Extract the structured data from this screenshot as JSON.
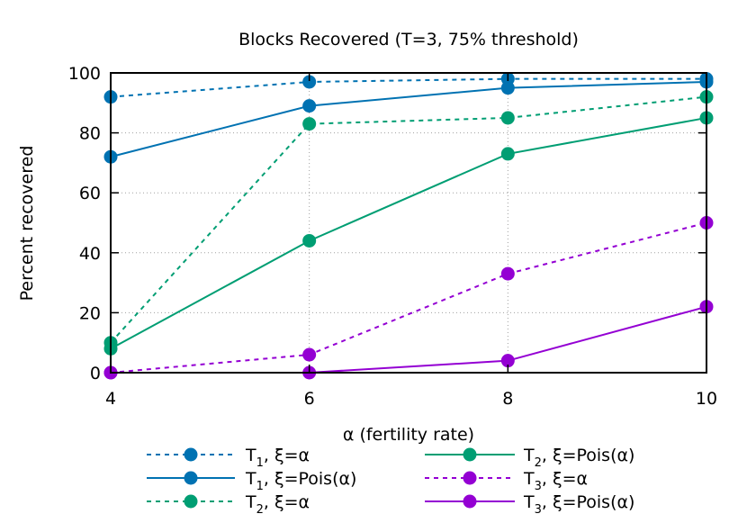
{
  "chart_data": {
    "type": "line",
    "title": "Blocks Recovered (T=3, 75% threshold)",
    "xlabel": "α (fertility rate)",
    "ylabel": "Percent recovered",
    "x": [
      4,
      6,
      8,
      10
    ],
    "xlim": [
      4,
      10
    ],
    "ylim": [
      0,
      100
    ],
    "xticks": [
      "4",
      "6",
      "8",
      "10"
    ],
    "yticks": [
      "0",
      "20",
      "40",
      "60",
      "80",
      "100"
    ],
    "grid": true,
    "legend_position": "bottom",
    "series": [
      {
        "name_base": "T",
        "name_sub": "1",
        "name_rest": ", ξ=α",
        "color": "#0072b2",
        "dashed": true,
        "values": [
          92,
          97,
          98,
          98
        ]
      },
      {
        "name_base": "T",
        "name_sub": "1",
        "name_rest": ", ξ=Pois(α)",
        "color": "#0072b2",
        "dashed": false,
        "values": [
          72,
          89,
          95,
          97
        ]
      },
      {
        "name_base": "T",
        "name_sub": "2",
        "name_rest": ", ξ=α",
        "color": "#009e73",
        "dashed": true,
        "values": [
          10,
          83,
          85,
          92
        ]
      },
      {
        "name_base": "T",
        "name_sub": "2",
        "name_rest": ", ξ=Pois(α)",
        "color": "#009e73",
        "dashed": false,
        "values": [
          8,
          44,
          73,
          85
        ]
      },
      {
        "name_base": "T",
        "name_sub": "3",
        "name_rest": ", ξ=α",
        "color": "#9400d3",
        "dashed": true,
        "values": [
          0,
          6,
          33,
          50
        ]
      },
      {
        "name_base": "T",
        "name_sub": "3",
        "name_rest": ", ξ=Pois(α)",
        "color": "#9400d3",
        "dashed": false,
        "values": [
          0,
          0,
          4,
          22
        ]
      }
    ]
  }
}
